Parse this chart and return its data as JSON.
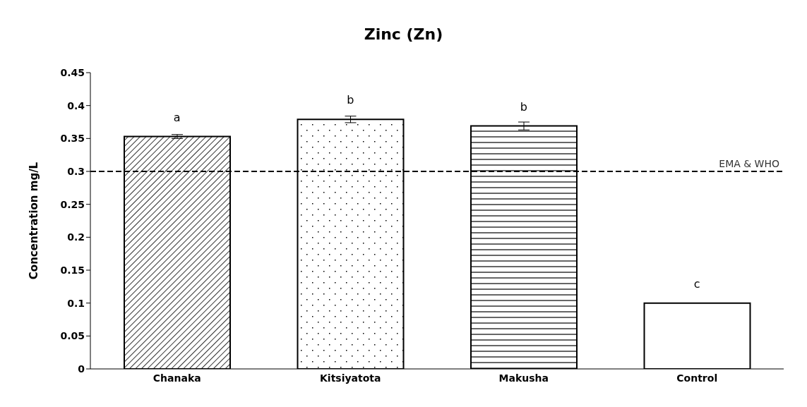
{
  "chart_data": {
    "type": "bar",
    "title": "Zinc (Zn)",
    "ylabel": "Concentration mg/L",
    "categories": [
      "Chanaka",
      "Kitsiyatota",
      "Makusha",
      "Control"
    ],
    "values": [
      0.353,
      0.379,
      0.369,
      0.1
    ],
    "errors": [
      0.003,
      0.005,
      0.006,
      null
    ],
    "color": "#000000",
    "ylim": [
      0,
      0.45
    ],
    "yticks": [
      0,
      0.05,
      0.1,
      0.15,
      0.2,
      0.25,
      0.3,
      0.35,
      0.4,
      0.45
    ],
    "grid": false,
    "ref_lines": [
      {
        "axis": "y",
        "value": 0.3,
        "label": "EMA & WHO",
        "line_style": "dashed",
        "color": "#000000"
      }
    ],
    "annotations": [
      {
        "text": "a",
        "x": "Chanaka",
        "y": 0.353
      },
      {
        "text": "b",
        "x": "Kitsiyatota",
        "y": 0.379
      },
      {
        "text": "b",
        "x": "Makusha",
        "y": 0.369
      },
      {
        "text": "c",
        "x": "Control",
        "y": 0.1
      }
    ]
  }
}
